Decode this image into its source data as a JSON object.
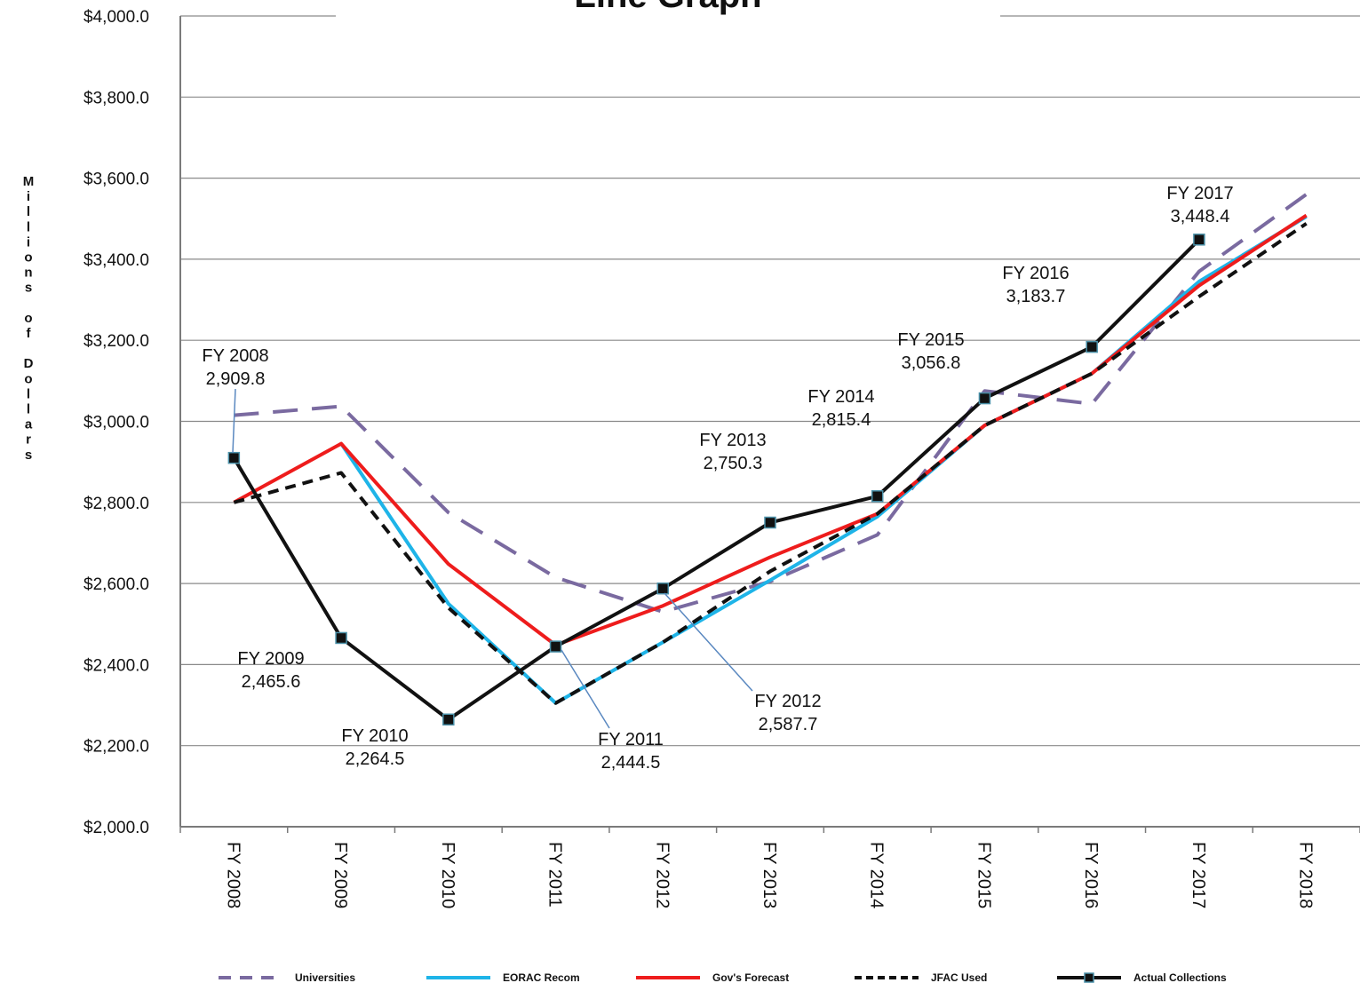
{
  "chart_data": {
    "type": "line",
    "title": "Line Graph",
    "ylabel": "Millions of Dollars",
    "xlabel": "",
    "ylim": [
      2000,
      4000
    ],
    "yticks": [
      2000,
      2200,
      2400,
      2600,
      2800,
      3000,
      3200,
      3400,
      3600,
      3800,
      4000
    ],
    "ytick_labels": [
      "$2,000.0",
      "$2,200.0",
      "$2,400.0",
      "$2,600.0",
      "$2,800.0",
      "$3,000.0",
      "$3,200.0",
      "$3,400.0",
      "$3,600.0",
      "$3,800.0",
      "$4,000.0"
    ],
    "categories": [
      "FY 2008",
      "FY 2009",
      "FY 2010",
      "FY 2011",
      "FY 2012",
      "FY 2013",
      "FY 2014",
      "FY 2015",
      "FY 2016",
      "FY 2017",
      "FY 2018"
    ],
    "grid": true,
    "legend_position": "bottom",
    "series": [
      {
        "name": "Universities",
        "color": "#7a6aa0",
        "style": "long-dash",
        "values": [
          3015,
          3037,
          2775,
          2615,
          2530,
          2605,
          2720,
          3075,
          3043,
          3370,
          3560
        ]
      },
      {
        "name": "EORAC Recom",
        "color": "#1eb4e8",
        "style": "solid",
        "values": [
          null,
          2945,
          2550,
          2305,
          2455,
          2608,
          2765,
          2990,
          3118,
          3345,
          3505
        ]
      },
      {
        "name": "Gov's Forecast",
        "color": "#ee1c1c",
        "style": "solid",
        "values": [
          2800,
          2945,
          2648,
          2448,
          2545,
          2665,
          2772,
          2990,
          3118,
          3335,
          3508
        ]
      },
      {
        "name": "JFAC Used",
        "color": "#111111",
        "style": "short-dash",
        "values": [
          2800,
          2873,
          2540,
          2305,
          2455,
          2630,
          2772,
          2990,
          3118,
          3308,
          3488
        ]
      },
      {
        "name": "Actual Collections",
        "color": "#111111",
        "style": "solid-marker",
        "values": [
          2909.8,
          2465.6,
          2264.5,
          2444.5,
          2587.7,
          2750.3,
          2815.4,
          3056.8,
          3183.7,
          3448.4,
          null
        ]
      }
    ],
    "annotations": [
      {
        "line1": "FY 2008",
        "line2": "2,909.8",
        "index": 0,
        "value": 2909.8
      },
      {
        "line1": "FY 2009",
        "line2": "2,465.6",
        "index": 1,
        "value": 2465.6
      },
      {
        "line1": "FY 2010",
        "line2": "2,264.5",
        "index": 2,
        "value": 2264.5
      },
      {
        "line1": "FY 2011",
        "line2": "2,444.5",
        "index": 3,
        "value": 2444.5
      },
      {
        "line1": "FY 2012",
        "line2": "2,587.7",
        "index": 4,
        "value": 2587.7
      },
      {
        "line1": "FY 2013",
        "line2": "2,750.3",
        "index": 5,
        "value": 2750.3
      },
      {
        "line1": "FY 2014",
        "line2": "2,815.4",
        "index": 6,
        "value": 2815.4
      },
      {
        "line1": "FY 2015",
        "line2": "3,056.8",
        "index": 7,
        "value": 3056.8
      },
      {
        "line1": "FY 2016",
        "line2": "3,183.7",
        "index": 8,
        "value": 3183.7
      },
      {
        "line1": "FY 2017",
        "line2": "3,448.4",
        "index": 9,
        "value": 3448.4
      }
    ]
  }
}
